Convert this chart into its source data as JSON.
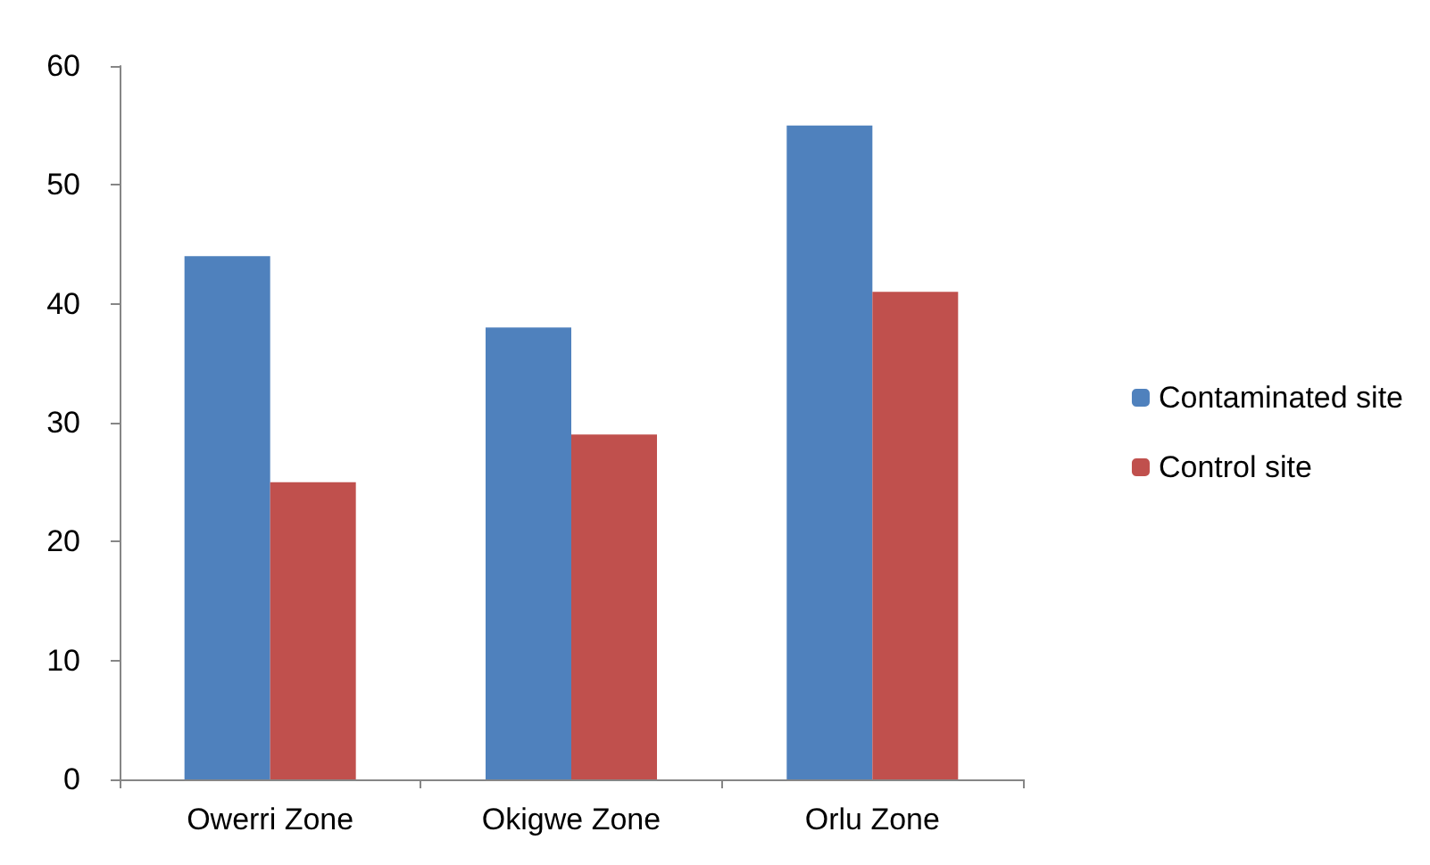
{
  "chart_data": {
    "type": "bar",
    "categories": [
      "Owerri Zone",
      "Okigwe Zone",
      "Orlu Zone"
    ],
    "series": [
      {
        "name": "Contaminated site",
        "color": "#4f81bd",
        "values": [
          44,
          38,
          55
        ]
      },
      {
        "name": "Control site",
        "color": "#c0504d",
        "values": [
          25,
          29,
          41
        ]
      }
    ],
    "ylim": [
      0,
      60
    ],
    "yticks": [
      0,
      10,
      20,
      30,
      40,
      50,
      60
    ],
    "grid": false,
    "legend": "right"
  }
}
